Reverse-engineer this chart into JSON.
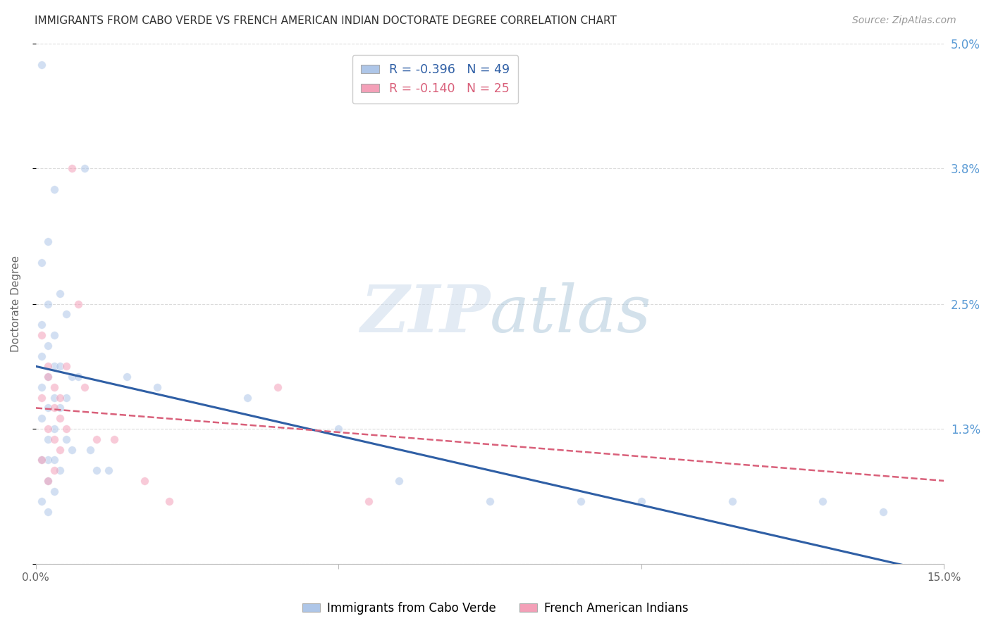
{
  "title": "IMMIGRANTS FROM CABO VERDE VS FRENCH AMERICAN INDIAN DOCTORATE DEGREE CORRELATION CHART",
  "source": "Source: ZipAtlas.com",
  "ylabel": "Doctorate Degree",
  "x_min": 0.0,
  "x_max": 0.15,
  "y_min": 0.0,
  "y_max": 0.05,
  "y_ticks": [
    0.0,
    0.013,
    0.025,
    0.038,
    0.05
  ],
  "y_tick_labels_right": [
    "",
    "1.3%",
    "2.5%",
    "3.8%",
    "5.0%"
  ],
  "watermark_zip": "ZIP",
  "watermark_atlas": "atlas",
  "cabo_verde_color": "#aec6e8",
  "french_indian_color": "#f4a0b8",
  "cabo_verde_line_color": "#2f5fa5",
  "french_indian_line_color": "#d9607a",
  "background_color": "#ffffff",
  "grid_color": "#cccccc",
  "title_color": "#333333",
  "right_label_color": "#5b9bd5",
  "marker_size": 70,
  "marker_alpha": 0.55,
  "cabo_verde_line_y0": 0.019,
  "cabo_verde_line_y1": -0.001,
  "french_indian_line_y0": 0.015,
  "french_indian_line_y1": 0.008,
  "cabo_verde_x": [
    0.001,
    0.001,
    0.001,
    0.001,
    0.001,
    0.001,
    0.001,
    0.001,
    0.002,
    0.002,
    0.002,
    0.002,
    0.002,
    0.002,
    0.002,
    0.002,
    0.002,
    0.003,
    0.003,
    0.003,
    0.003,
    0.003,
    0.003,
    0.003,
    0.004,
    0.004,
    0.004,
    0.004,
    0.005,
    0.005,
    0.005,
    0.006,
    0.006,
    0.007,
    0.008,
    0.009,
    0.01,
    0.012,
    0.015,
    0.02,
    0.035,
    0.05,
    0.06,
    0.075,
    0.09,
    0.1,
    0.115,
    0.13,
    0.14
  ],
  "cabo_verde_y": [
    0.048,
    0.029,
    0.023,
    0.02,
    0.017,
    0.014,
    0.01,
    0.006,
    0.031,
    0.025,
    0.021,
    0.018,
    0.015,
    0.012,
    0.01,
    0.008,
    0.005,
    0.036,
    0.022,
    0.019,
    0.016,
    0.013,
    0.01,
    0.007,
    0.026,
    0.019,
    0.015,
    0.009,
    0.024,
    0.016,
    0.012,
    0.018,
    0.011,
    0.018,
    0.038,
    0.011,
    0.009,
    0.009,
    0.018,
    0.017,
    0.016,
    0.013,
    0.008,
    0.006,
    0.006,
    0.006,
    0.006,
    0.006,
    0.005
  ],
  "french_indian_x": [
    0.001,
    0.001,
    0.001,
    0.002,
    0.002,
    0.002,
    0.002,
    0.003,
    0.003,
    0.003,
    0.003,
    0.004,
    0.004,
    0.004,
    0.005,
    0.005,
    0.006,
    0.007,
    0.008,
    0.01,
    0.013,
    0.018,
    0.022,
    0.04,
    0.055
  ],
  "french_indian_y": [
    0.022,
    0.016,
    0.01,
    0.019,
    0.018,
    0.013,
    0.008,
    0.017,
    0.015,
    0.012,
    0.009,
    0.016,
    0.014,
    0.011,
    0.019,
    0.013,
    0.038,
    0.025,
    0.017,
    0.012,
    0.012,
    0.008,
    0.006,
    0.017,
    0.006
  ]
}
